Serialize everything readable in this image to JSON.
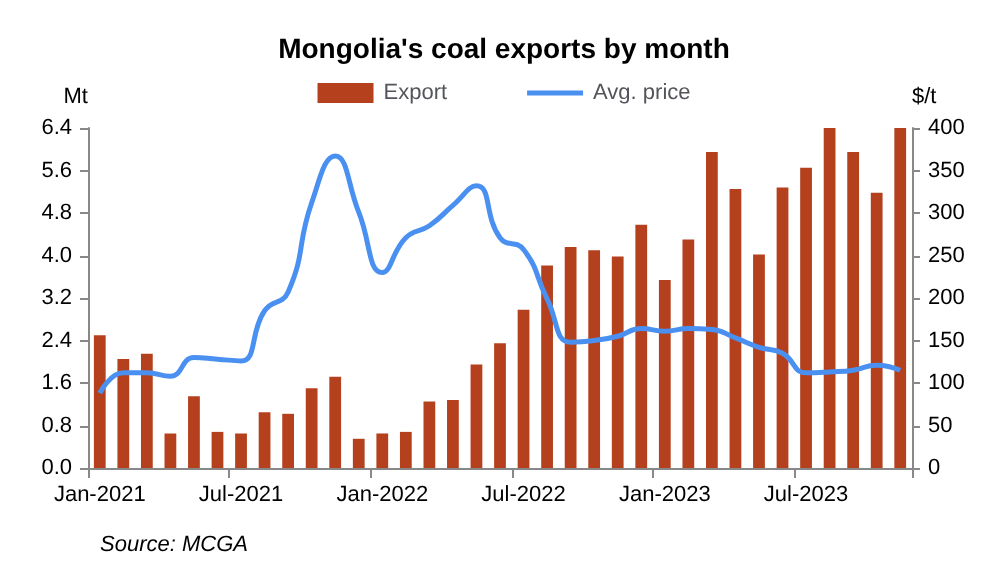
{
  "chart_data": {
    "type": "bar",
    "title": "Mongolia's coal exports by month",
    "categories": [
      "Jan-2021",
      null,
      null,
      null,
      null,
      null,
      "Jul-2021",
      null,
      null,
      null,
      null,
      null,
      "Jan-2022",
      null,
      null,
      null,
      null,
      null,
      "Jul-2022",
      null,
      null,
      null,
      null,
      null,
      "Jan-2023",
      null,
      null,
      null,
      null,
      null,
      "Jul-2023",
      null,
      null,
      null,
      null
    ],
    "series": [
      {
        "name": "Export",
        "color": "#b5401d",
        "values": [
          2.5,
          2.05,
          2.15,
          0.65,
          1.35,
          0.68,
          0.65,
          1.05,
          1.02,
          1.5,
          1.72,
          0.55,
          0.65,
          0.68,
          1.25,
          1.28,
          1.95,
          2.35,
          2.98,
          3.81,
          4.16,
          4.1,
          3.98,
          4.58,
          3.54,
          4.3,
          5.95,
          5.25,
          4.02,
          5.28,
          5.65,
          6.4,
          5.95,
          5.18,
          6.4
        ]
      },
      {
        "name": "Avg. price",
        "type": "line",
        "axis": "y2",
        "color": "#4a90f0",
        "values": [
          88,
          112,
          112,
          108,
          130,
          128,
          126,
          185,
          207,
          312,
          367,
          301,
          230,
          271,
          285,
          309,
          332,
          271,
          257,
          199,
          148,
          150,
          155,
          164,
          161,
          164,
          163,
          153,
          142,
          135,
          112,
          113,
          115,
          121,
          115
        ]
      }
    ],
    "ylabel": "Mt",
    "y2label": "$/t",
    "ylim": [
      0,
      6.4
    ],
    "yticks": [
      {
        "value": 0,
        "label": "0.0"
      },
      0.8,
      1.6,
      2.4,
      3.2,
      {
        "value": 4,
        "label": "4.0"
      },
      4.8,
      5.6,
      6.4
    ],
    "y2lim": [
      0,
      400
    ],
    "y2ticks": [
      0,
      50,
      100,
      150,
      200,
      250,
      300,
      350,
      400
    ],
    "legend": "top",
    "grid": false,
    "marker": "none",
    "annotations": [
      "Source: MCGA"
    ]
  }
}
